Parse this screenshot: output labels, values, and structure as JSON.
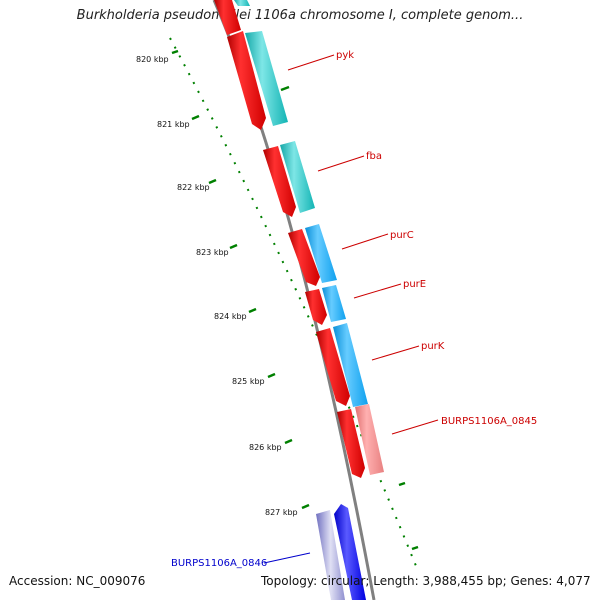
{
  "header": {
    "title": "Burkholderia pseudomallei 1106a chromosome I, complete genom..."
  },
  "footer": {
    "accession": "Accession: NC_009076",
    "topology": "Topology: circular; Length: 3,988,455 bp; Genes: 4,077"
  },
  "colors": {
    "forward_strand_gene": "#ff0000",
    "forward_strand_cds": "#00c8c8",
    "light_blue_cds": "#00aaff",
    "pink_cds": "#f08080",
    "reverse_strand_gene": "#0000ff",
    "reverse_strand_light": "#8c8cd2",
    "backbone": "#808080",
    "ruler_ticks": "#008000",
    "forward_label": "#cc0000",
    "reverse_label": "#0000cc"
  },
  "ruler": {
    "ticks": [
      {
        "label": "820 kbp"
      },
      {
        "label": "821 kbp"
      },
      {
        "label": "822 kbp"
      },
      {
        "label": "823 kbp"
      },
      {
        "label": "824 kbp"
      },
      {
        "label": "825 kbp"
      },
      {
        "label": "826 kbp"
      },
      {
        "label": "827 kbp"
      }
    ]
  },
  "genes": [
    {
      "name": "pyk",
      "strand": "forward"
    },
    {
      "name": "fba",
      "strand": "forward"
    },
    {
      "name": "purC",
      "strand": "forward"
    },
    {
      "name": "purE",
      "strand": "forward"
    },
    {
      "name": "purK",
      "strand": "forward"
    },
    {
      "name": "BURPS1106A_0845",
      "strand": "forward"
    },
    {
      "name": "BURPS1106A_0846",
      "strand": "reverse"
    }
  ]
}
